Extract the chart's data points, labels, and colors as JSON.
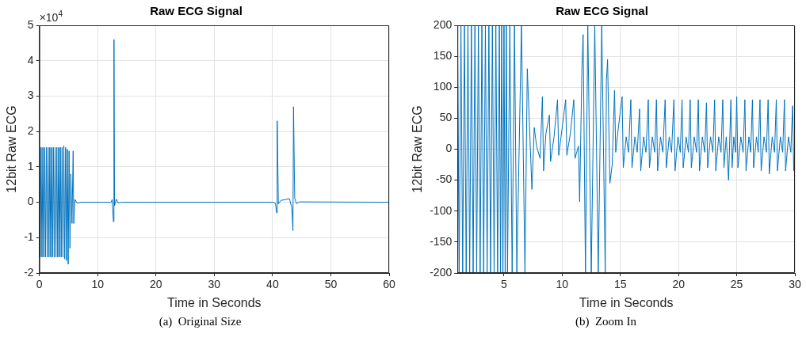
{
  "chart_data": [
    {
      "type": "line",
      "title": "Raw ECG Signal",
      "xlabel": "Time in Seconds",
      "ylabel": "12bit Raw ECG",
      "annotations": [
        "×10$^{4}$",
        "(a)  Original Size"
      ],
      "xlim": [
        0,
        60
      ],
      "xticks": [
        0,
        10,
        20,
        30,
        40,
        50,
        60
      ],
      "ylim": [
        -2,
        5
      ],
      "yticks": [
        -2,
        -1,
        0,
        1,
        2,
        3,
        4,
        5
      ],
      "grid": true,
      "legend": false,
      "marker": "none",
      "line_style": "solid",
      "series": [
        {
          "color": "#0072bd",
          "x": [
            0,
            0.15,
            0.3,
            0.45,
            0.6,
            0.75,
            0.9,
            1.05,
            1.2,
            1.35,
            1.5,
            1.65,
            1.8,
            1.95,
            2.1,
            2.25,
            2.4,
            2.55,
            2.7,
            2.85,
            3.0,
            3.15,
            3.3,
            3.45,
            3.6,
            3.75,
            3.9,
            4.05,
            4.2,
            4.35,
            4.5,
            4.65,
            4.8,
            4.95,
            5.1,
            5.25,
            5.4,
            5.6,
            5.8,
            5.9,
            6.1,
            6.5,
            7,
            12.3,
            12.5,
            12.7,
            12.8,
            12.9,
            13.2,
            13.5,
            14,
            40,
            40.5,
            40.7,
            40.8,
            41,
            41.4,
            42.9,
            43.3,
            43.5,
            43.6,
            43.8,
            44.1,
            44.6,
            60
          ],
          "values": [
            1.55,
            -1.55,
            1.55,
            -1.55,
            1.55,
            -1.55,
            1.55,
            -1.55,
            1.55,
            -1.55,
            1.55,
            -1.55,
            1.55,
            -1.55,
            1.55,
            -1.55,
            1.55,
            -1.55,
            1.55,
            -1.55,
            1.55,
            -1.55,
            1.55,
            -1.55,
            1.55,
            -1.55,
            1.55,
            -1.55,
            1.6,
            -1.6,
            1.55,
            -1.65,
            1.5,
            -1.75,
            1.45,
            -1.3,
            0.8,
            -0.6,
            1.45,
            -0.6,
            0.08,
            -0.03,
            0,
            0,
            0.08,
            -0.55,
            4.6,
            -0.1,
            0.09,
            -0.02,
            0,
            0,
            -0.03,
            -0.3,
            2.3,
            -0.05,
            0.05,
            0.1,
            -0.15,
            -0.8,
            2.7,
            0.12,
            -0.04,
            0.01,
            0
          ]
        }
      ]
    },
    {
      "type": "line",
      "title": "Raw ECG Signal",
      "xlabel": "Time in Seconds",
      "ylabel": "12bit Raw ECG",
      "annotations": [
        "(b)  Zoom In"
      ],
      "xlim": [
        1,
        30
      ],
      "xticks": [
        5,
        10,
        15,
        20,
        25,
        30
      ],
      "ylim": [
        -200,
        200
      ],
      "yticks": [
        -200,
        -150,
        -100,
        -50,
        0,
        50,
        100,
        150,
        200
      ],
      "grid": true,
      "legend": false,
      "marker": "none",
      "line_style": "solid",
      "series": [
        {
          "color": "#0072bd",
          "x": [
            1,
            1.15,
            1.3,
            1.45,
            1.6,
            1.75,
            1.9,
            2.05,
            2.2,
            2.35,
            2.5,
            2.65,
            2.8,
            2.95,
            3.1,
            3.25,
            3.4,
            3.55,
            3.7,
            3.85,
            4.0,
            4.15,
            4.3,
            4.45,
            4.6,
            4.7,
            4.8,
            4.9,
            5.0,
            5.1,
            5.2,
            5.3,
            5.5,
            5.7,
            5.9,
            6.1,
            6.5,
            6.8,
            7.0,
            7.4,
            7.6,
            7.8,
            8.1,
            8.3,
            8.4,
            8.6,
            8.9,
            9.0,
            9.3,
            9.6,
            9.7,
            9.9,
            10.3,
            10.4,
            10.7,
            11.0,
            11.1,
            11.4,
            11.5,
            11.7,
            11.8,
            12.0,
            12.2,
            12.5,
            12.8,
            13.1,
            13.4,
            13.7,
            13.8,
            13.9,
            14.1,
            14.3,
            14.5,
            14.6,
            14.8,
            15.15,
            15.25,
            15.5,
            15.7,
            15.9,
            16.0,
            16.25,
            16.45,
            16.65,
            16.75,
            17.0,
            17.2,
            17.4,
            17.5,
            17.75,
            17.95,
            18.1,
            18.2,
            18.45,
            18.65,
            18.85,
            18.95,
            19.2,
            19.4,
            19.6,
            19.7,
            19.95,
            20.15,
            20.3,
            20.4,
            20.65,
            20.85,
            21.0,
            21.1,
            21.35,
            21.55,
            21.7,
            21.8,
            22.05,
            22.25,
            22.4,
            22.5,
            22.75,
            22.95,
            23.1,
            23.2,
            23.45,
            23.65,
            23.8,
            23.9,
            24.1,
            24.3,
            24.5,
            24.6,
            24.75,
            24.9,
            25.0,
            25.1,
            25.35,
            25.55,
            25.7,
            25.8,
            26.05,
            26.2,
            26.35,
            26.45,
            26.7,
            26.85,
            27.0,
            27.1,
            27.35,
            27.55,
            27.7,
            27.8,
            28.05,
            28.25,
            28.4,
            28.5,
            28.75,
            28.95,
            29.1,
            29.2,
            29.45,
            29.65,
            29.8,
            29.9,
            30
          ],
          "values": [
            200,
            -200,
            200,
            -200,
            200,
            -200,
            200,
            -200,
            200,
            -200,
            200,
            -200,
            200,
            -200,
            200,
            -200,
            200,
            -200,
            200,
            -200,
            200,
            -200,
            200,
            -200,
            200,
            -200,
            200,
            -200,
            200,
            -200,
            200,
            -200,
            200,
            -200,
            200,
            -200,
            200,
            -200,
            130,
            -65,
            35,
            5,
            -15,
            85,
            -35,
            25,
            55,
            -20,
            20,
            80,
            -10,
            20,
            80,
            -10,
            25,
            80,
            -15,
            5,
            -85,
            135,
            185,
            -200,
            200,
            -200,
            200,
            -200,
            200,
            -200,
            110,
            145,
            -55,
            -25,
            95,
            -5,
            30,
            85,
            -30,
            20,
            -5,
            80,
            -30,
            20,
            -5,
            65,
            -35,
            20,
            -5,
            80,
            -30,
            20,
            -5,
            80,
            -35,
            20,
            -5,
            80,
            -30,
            20,
            -5,
            80,
            -35,
            20,
            -5,
            80,
            -30,
            20,
            -5,
            80,
            -30,
            20,
            -5,
            80,
            -35,
            20,
            -5,
            75,
            -30,
            20,
            -5,
            80,
            -35,
            20,
            -5,
            80,
            -30,
            20,
            -50,
            80,
            -30,
            20,
            -5,
            85,
            -30,
            20,
            -5,
            80,
            -35,
            20,
            -5,
            80,
            -30,
            20,
            -5,
            80,
            -35,
            20,
            -5,
            80,
            -40,
            20,
            -5,
            80,
            -35,
            20,
            -5,
            80,
            -35,
            20,
            -5,
            70,
            -35,
            10
          ]
        }
      ]
    }
  ]
}
